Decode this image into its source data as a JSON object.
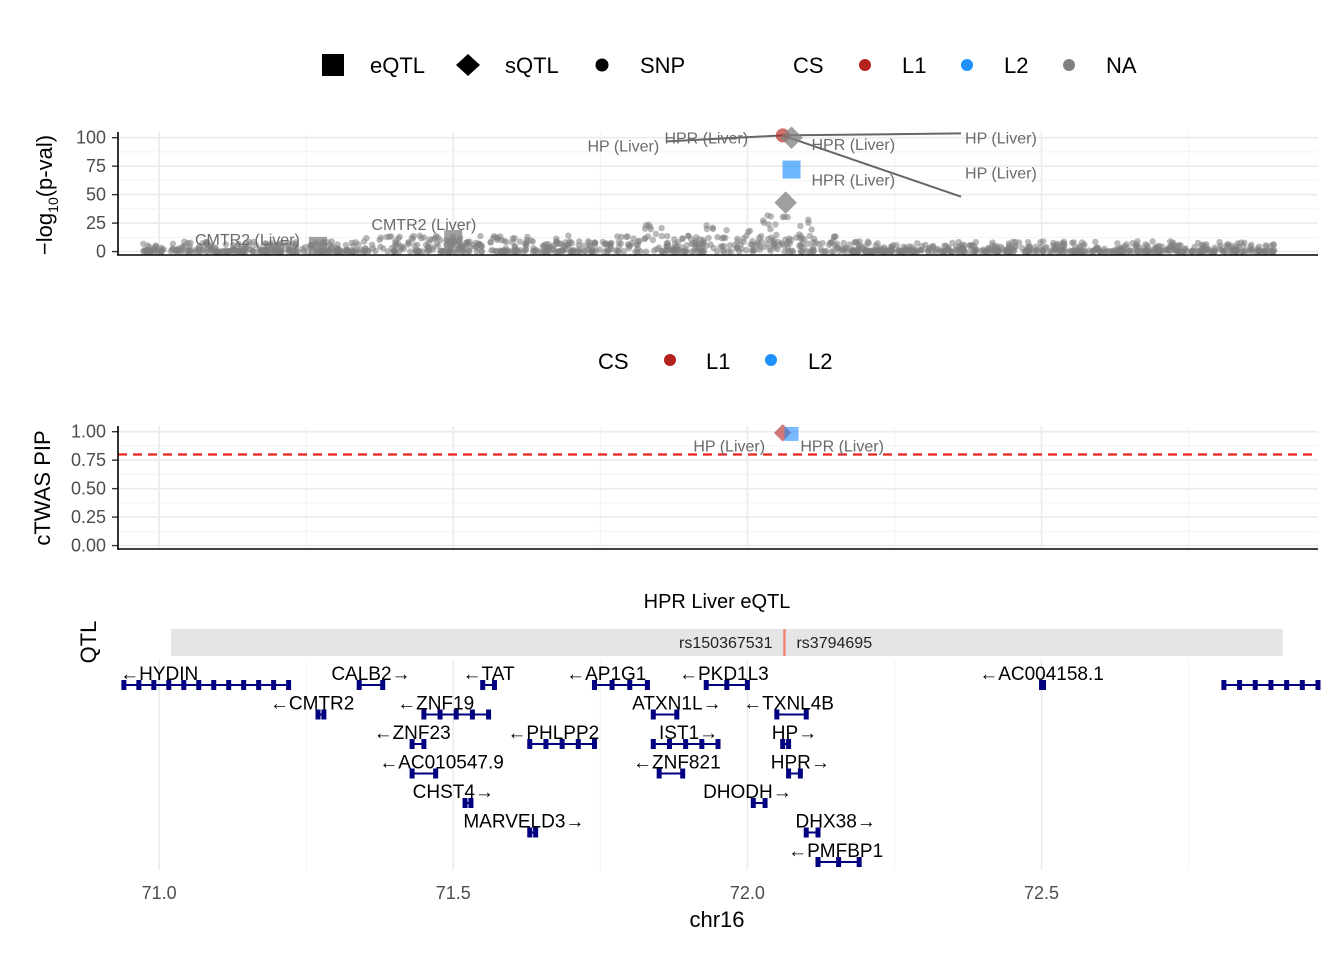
{
  "chart_data": [
    {
      "type": "scatter",
      "name": "manhattan",
      "ylabel": "−log₁₀(p-val)",
      "ylabel_main": "−log",
      "ylabel_sub": "10",
      "ylabel_tail": "(p-val)",
      "yticks": [
        0,
        25,
        50,
        75,
        100
      ],
      "ylim": [
        -3,
        105
      ],
      "shape_legend": [
        {
          "label": "eQTL",
          "shape": "square"
        },
        {
          "label": "sQTL",
          "shape": "diamond"
        },
        {
          "label": "SNP",
          "shape": "circle"
        }
      ],
      "color_legend": {
        "title": "CS",
        "entries": [
          {
            "label": "L1",
            "color": "#b2221e"
          },
          {
            "label": "L2",
            "color": "#1e90ff"
          },
          {
            "label": "NA",
            "color": "#808080"
          }
        ]
      },
      "highlighted_points": [
        {
          "x": 72.06,
          "y": 102,
          "shape": "circle",
          "cs": "L1"
        },
        {
          "x": 72.075,
          "y": 100,
          "shape": "diamond",
          "cs": "NA"
        },
        {
          "x": 72.075,
          "y": 72,
          "shape": "square",
          "cs": "L2"
        },
        {
          "x": 72.065,
          "y": 43,
          "shape": "diamond",
          "cs": "NA"
        },
        {
          "x": 71.27,
          "y": 5,
          "shape": "square",
          "cs": "NA"
        },
        {
          "x": 71.5,
          "y": 11,
          "shape": "square",
          "cs": "NA"
        }
      ],
      "annotations": [
        {
          "text": "HP (Liver)",
          "x": 71.85,
          "y": 88,
          "anchor": "end"
        },
        {
          "text": "HPR (Liver)",
          "x": 71.93,
          "y": 95,
          "anchor": "middle"
        },
        {
          "text": "HPR (Liver)",
          "x": 72.18,
          "y": 89,
          "anchor": "middle"
        },
        {
          "text": "HP (Liver)",
          "x": 72.37,
          "y": 95,
          "anchor": "start"
        },
        {
          "text": "HP (Liver)",
          "x": 72.37,
          "y": 64,
          "anchor": "start"
        },
        {
          "text": "HPR (Liver)",
          "x": 72.18,
          "y": 58,
          "anchor": "middle"
        },
        {
          "text": "CMTR2 (Liver)",
          "x": 71.15,
          "y": 6,
          "anchor": "middle"
        },
        {
          "text": "CMTR2 (Liver)",
          "x": 71.45,
          "y": 19,
          "anchor": "middle"
        }
      ]
    },
    {
      "type": "scatter",
      "name": "ctwas_pip",
      "ylabel": "cTWAS PIP",
      "yticks": [
        "0.00",
        "0.25",
        "0.50",
        "0.75",
        "1.00"
      ],
      "ylim": [
        -0.03,
        1.05
      ],
      "threshold": 0.8,
      "color_legend": {
        "title": "CS",
        "entries": [
          {
            "label": "L1",
            "color": "#b2221e"
          },
          {
            "label": "L2",
            "color": "#1e90ff"
          }
        ]
      },
      "points": [
        {
          "x": 72.06,
          "y": 0.99,
          "shape": "diamond",
          "cs": "L1"
        },
        {
          "x": 72.075,
          "y": 0.98,
          "shape": "square",
          "cs": "L2"
        }
      ],
      "annotations": [
        {
          "text": "HP (Liver)",
          "x": 72.03,
          "y": 0.905,
          "anchor": "end"
        },
        {
          "text": "HPR (Liver)",
          "x": 72.09,
          "y": 0.905,
          "anchor": "start"
        }
      ]
    },
    {
      "type": "track",
      "name": "qtl_track",
      "ylabel": "QTL",
      "title": "HPR Liver eQTL",
      "range": [
        71.02,
        72.91
      ],
      "snp_position": 72.063,
      "snp_left_label": "rs150367531",
      "snp_right_label": "rs3794695"
    },
    {
      "type": "genes",
      "name": "gene_track",
      "xlabel": "chr16",
      "xticks": [
        "71.0",
        "71.5",
        "72.0",
        "72.5"
      ],
      "xlim": [
        70.93,
        72.97
      ],
      "genes": [
        {
          "label": "←HYDIN",
          "lx": 71.0,
          "row": 0,
          "start": 70.94,
          "end": 71.22
        },
        {
          "label": "CALB2→",
          "lx": 71.36,
          "row": 0,
          "start": 71.34,
          "end": 71.38
        },
        {
          "label": "←TAT",
          "lx": 71.56,
          "row": 0,
          "start": 71.55,
          "end": 71.57
        },
        {
          "label": "←AP1G1",
          "lx": 71.76,
          "row": 0,
          "start": 71.74,
          "end": 71.83
        },
        {
          "label": "←PKD1L3",
          "lx": 71.96,
          "row": 0,
          "start": 71.93,
          "end": 72.0
        },
        {
          "label": "←AC004158.1",
          "lx": 72.5,
          "row": 0,
          "start": 72.5,
          "end": 72.5
        },
        {
          "label": "",
          "lx": 72.84,
          "row": 0,
          "start": 72.81,
          "end": 72.97
        },
        {
          "label": "←CMTR2",
          "lx": 71.26,
          "row": 1,
          "start": 71.27,
          "end": 71.28
        },
        {
          "label": "←ZNF19",
          "lx": 71.47,
          "row": 1,
          "start": 71.45,
          "end": 71.56
        },
        {
          "label": "ATXN1L→",
          "lx": 71.88,
          "row": 1,
          "start": 71.84,
          "end": 71.88
        },
        {
          "label": "←TXNL4B",
          "lx": 72.07,
          "row": 1,
          "start": 72.05,
          "end": 72.1
        },
        {
          "label": "←ZNF23",
          "lx": 71.43,
          "row": 2,
          "start": 71.43,
          "end": 71.45
        },
        {
          "label": "←PHLPP2",
          "lx": 71.67,
          "row": 2,
          "start": 71.63,
          "end": 71.74
        },
        {
          "label": "IST1→",
          "lx": 71.9,
          "row": 2,
          "start": 71.84,
          "end": 71.95
        },
        {
          "label": "HP→",
          "lx": 72.08,
          "row": 2,
          "start": 72.06,
          "end": 72.07
        },
        {
          "label": "←AC010547.9",
          "lx": 71.48,
          "row": 3,
          "start": 71.43,
          "end": 71.47
        },
        {
          "label": "←ZNF821",
          "lx": 71.88,
          "row": 3,
          "start": 71.85,
          "end": 71.89
        },
        {
          "label": "HPR→",
          "lx": 72.09,
          "row": 3,
          "start": 72.07,
          "end": 72.09
        },
        {
          "label": "CHST4→",
          "lx": 71.5,
          "row": 4,
          "start": 71.52,
          "end": 71.53
        },
        {
          "label": "DHODH→",
          "lx": 72.0,
          "row": 4,
          "start": 72.01,
          "end": 72.03
        },
        {
          "label": "MARVELD3→",
          "lx": 71.62,
          "row": 5,
          "start": 71.63,
          "end": 71.64
        },
        {
          "label": "DHX38→",
          "lx": 72.15,
          "row": 5,
          "start": 72.1,
          "end": 72.12
        },
        {
          "label": "←PMFBP1",
          "lx": 72.15,
          "row": 6,
          "start": 72.12,
          "end": 72.19
        }
      ]
    }
  ]
}
